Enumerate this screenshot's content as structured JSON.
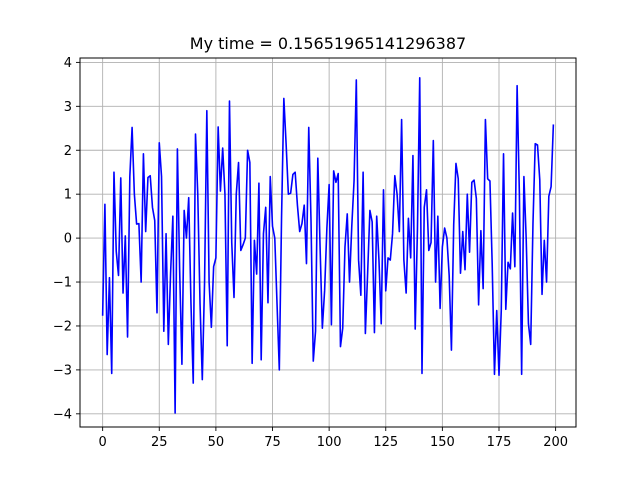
{
  "chart_data": {
    "type": "line",
    "title": "My time = 0.15651965141296387",
    "xlabel": "",
    "ylabel": "",
    "xlim": [
      -10,
      209
    ],
    "ylim": [
      -4.3,
      4.1
    ],
    "xticks": [
      0,
      25,
      50,
      75,
      100,
      125,
      150,
      175,
      200
    ],
    "yticks": [
      -4,
      -3,
      -2,
      -1,
      0,
      1,
      2,
      3,
      4
    ],
    "grid": true,
    "legend": "none",
    "series": [
      {
        "color": "#0000ff",
        "x_start": 0,
        "x_step": 1,
        "values": [
          -1.75,
          0.77,
          -2.65,
          -0.9,
          -3.08,
          1.5,
          -0.3,
          -0.85,
          1.37,
          -1.25,
          0.05,
          -2.25,
          1.4,
          2.52,
          1.0,
          0.32,
          0.33,
          -1.0,
          1.92,
          0.15,
          1.38,
          1.42,
          0.7,
          0.4,
          -1.7,
          2.17,
          1.4,
          -2.12,
          0.1,
          -2.42,
          -0.8,
          0.5,
          -3.98,
          2.03,
          -0.73,
          -2.87,
          0.63,
          0.0,
          0.92,
          -1.5,
          -3.3,
          2.37,
          1.0,
          -1.5,
          -3.22,
          -1.0,
          2.9,
          -1.0,
          -2.03,
          -0.65,
          -0.45,
          2.53,
          1.07,
          2.05,
          1.0,
          -2.45,
          3.12,
          -0.1,
          -1.35,
          1.0,
          1.72,
          -0.28,
          -0.15,
          0.0,
          2.0,
          1.72,
          -2.85,
          -0.05,
          -0.82,
          1.25,
          -2.77,
          0.1,
          0.7,
          -1.47,
          1.4,
          0.27,
          0.0,
          -1.5,
          -3.0,
          0.5,
          3.18,
          2.15,
          1.0,
          1.02,
          1.45,
          1.5,
          0.75,
          0.15,
          0.33,
          0.75,
          -0.58,
          2.52,
          0.4,
          -2.8,
          -2.12,
          1.82,
          -0.2,
          -2.05,
          -1.2,
          0.22,
          1.22,
          -1.97,
          1.53,
          1.27,
          1.47,
          -2.47,
          -2.05,
          -0.2,
          0.55,
          -1.0,
          0.27,
          1.3,
          3.6,
          -0.5,
          -1.3,
          1.5,
          -2.17,
          -0.8,
          0.63,
          0.37,
          -2.15,
          0.5,
          -0.5,
          -1.95,
          1.1,
          -1.2,
          -0.45,
          -0.5,
          0.1,
          1.42,
          1.0,
          0.15,
          2.7,
          -0.5,
          -1.25,
          0.45,
          -0.45,
          1.88,
          -2.07,
          0.22,
          3.65,
          -3.08,
          0.7,
          1.1,
          -0.28,
          -0.1,
          2.22,
          -1.0,
          0.5,
          -1.6,
          -0.2,
          0.23,
          0.0,
          -0.85,
          -2.55,
          0.3,
          1.7,
          1.35,
          -0.8,
          0.15,
          -0.72,
          1.0,
          -0.32,
          1.27,
          1.32,
          0.9,
          -1.52,
          0.17,
          -1.15,
          2.7,
          1.35,
          1.3,
          -0.6,
          -3.1,
          -1.65,
          -3.12,
          -1.65,
          1.92,
          -1.62,
          -0.55,
          -0.7,
          0.57,
          -0.65,
          3.47,
          1.0,
          -3.1,
          1.4,
          0.0,
          -1.95,
          -2.42,
          0.33,
          2.15,
          2.12,
          1.33,
          -1.28,
          -0.05,
          -1.0,
          0.95,
          1.17,
          2.57
        ]
      }
    ]
  }
}
